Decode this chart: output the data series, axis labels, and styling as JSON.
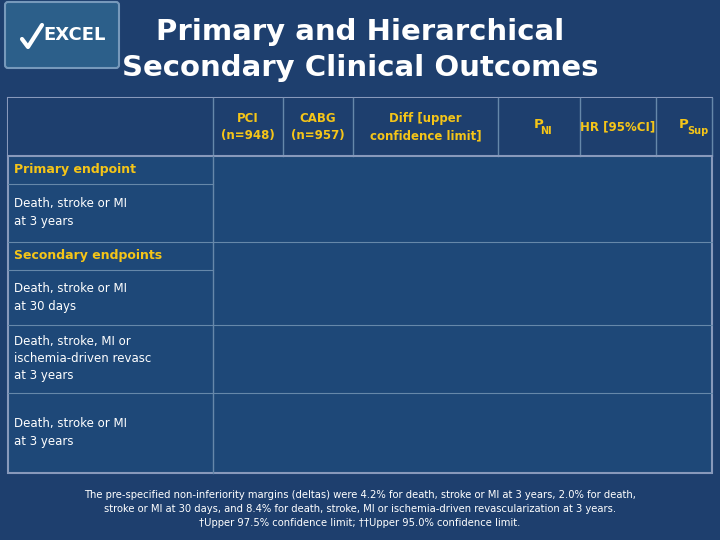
{
  "title_line1": "Primary and Hierarchical",
  "title_line2": "Secondary Clinical Outcomes",
  "bg_color": "#1e3f6e",
  "title_color": "#ffffff",
  "header_color": "#f5c518",
  "table_bg_dark": "#1e3f6e",
  "table_bg_light": "#1e4878",
  "row_label_col_color": "#ffffff",
  "section_header_color": "#f5c518",
  "col_header_texts": [
    "PCI\n(n=948)",
    "CABG\n(n=957)",
    "Diff [upper\nconfidence limit]",
    "P_NI",
    "HR [95%CI]",
    "P_Sup"
  ],
  "section_headers": [
    "Primary endpoint",
    "Secondary endpoints"
  ],
  "row_labels": [
    "Death, stroke or MI\nat 3 years",
    "Death, stroke or MI\nat 30 days",
    "Death, stroke, MI or\nischemia-driven revasc\nat 3 years",
    "Death, stroke or MI\nat 3 years"
  ],
  "footer_line1": "The pre-specified non-inferiority margins (deltas) were 4.2% for death, stroke or MI at 3 years, 2.0% for death,",
  "footer_line2": "stroke or MI at 30 days, and 8.4% for death, stroke, MI or ischemia-driven revascularization at 3 years.",
  "footer_line3": "†Upper 97.5% confidence limit; ††Upper 95.0% confidence limit.",
  "divider_color": "#6688aa",
  "border_color": "#8899bb",
  "logo_bg": "#2c5f8a",
  "logo_border": "#7799bb"
}
